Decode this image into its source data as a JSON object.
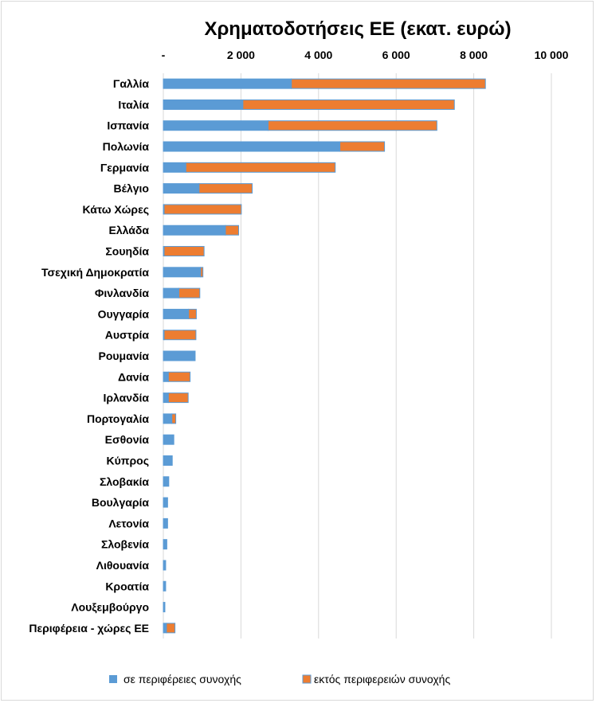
{
  "chart_data": {
    "type": "bar",
    "orientation": "horizontal",
    "stacked": true,
    "title": "Χρηματοδοτήσεις ΕΕ (εκατ. ευρώ)",
    "xlabel": "",
    "ylabel": "",
    "xlim": [
      0,
      10000
    ],
    "x_tick_labels": [
      "-",
      "2 000",
      "4 000",
      "6 000",
      "8 000",
      "10 000"
    ],
    "x_tick_values": [
      0,
      2000,
      4000,
      6000,
      8000,
      10000
    ],
    "x_axis_position": "top",
    "grid": true,
    "legend_position": "bottom",
    "categories": [
      "Γαλλία",
      "Ιταλία",
      "Ισπανία",
      "Πολωνία",
      "Γερμανία",
      "Βέλγιο",
      "Κάτω Χώρες",
      "Ελλάδα",
      "Σουηδία",
      "Τσεχική Δημοκρατία",
      "Φινλανδία",
      "Ουγγαρία",
      "Αυστρία",
      "Ρουμανία",
      "Δανία",
      "Ιρλανδία",
      "Πορτογαλία",
      "Εσθονία",
      "Κύπρος",
      "Σλοβακία",
      "Βουλγαρία",
      "Λετονία",
      "Σλοβενία",
      "Λιθουανία",
      "Κροατία",
      "Λουξεμβούργο",
      "Περιφέρεια - χώρες ΕΕ"
    ],
    "series": [
      {
        "name": "σε περιφέρειες συνοχής",
        "color": "#5b9bd5",
        "values": [
          3300,
          2050,
          2700,
          4550,
          580,
          920,
          20,
          1600,
          20,
          960,
          400,
          650,
          20,
          820,
          130,
          130,
          220,
          270,
          230,
          140,
          110,
          110,
          90,
          60,
          60,
          40,
          80
        ]
      },
      {
        "name": "εκτός περιφερειών συνοχής",
        "color": "#ed7d31",
        "values": [
          5000,
          5450,
          4350,
          1150,
          3850,
          1370,
          1990,
          340,
          1030,
          60,
          540,
          200,
          820,
          0,
          560,
          510,
          100,
          0,
          0,
          0,
          0,
          0,
          0,
          0,
          0,
          0,
          220
        ]
      }
    ]
  }
}
